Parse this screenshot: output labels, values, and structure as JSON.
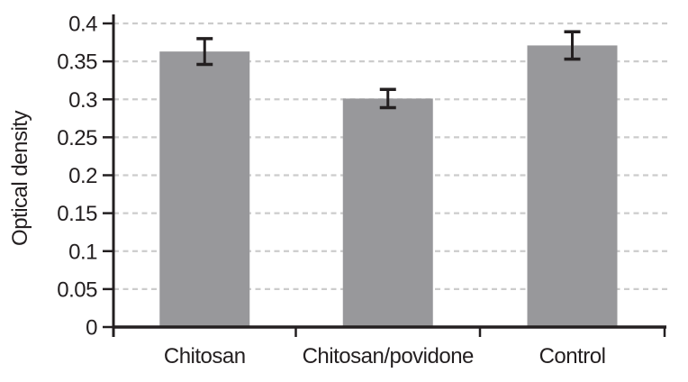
{
  "chart_data": {
    "type": "bar",
    "categories": [
      "Chitosan",
      "Chitosan/povidone",
      "Control"
    ],
    "values": [
      0.363,
      0.301,
      0.371
    ],
    "errors": [
      0.017,
      0.012,
      0.018
    ],
    "title": "",
    "xlabel": "",
    "ylabel": "Optical density",
    "ylim": [
      0,
      0.4
    ],
    "ytick_step": 0.05,
    "ytick_labels": [
      "0",
      "0.05",
      "0.1",
      "0.15",
      "0.2",
      "0.25",
      "0.3",
      "0.35",
      "0.4"
    ],
    "grid": "horizontal-dashed",
    "legend_position": "none"
  },
  "colors": {
    "bar_fill": "#98989b",
    "gridline": "#cccccc",
    "axis": "#231f20",
    "text": "#231f20",
    "error_bar": "#231f20",
    "background": "#ffffff"
  }
}
